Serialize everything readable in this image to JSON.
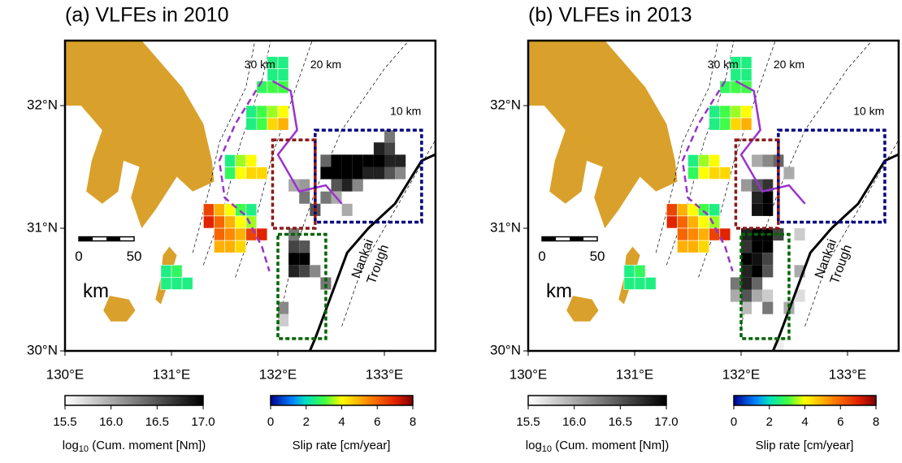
{
  "panels": [
    {
      "title": "(a) VLFEs in 2010",
      "xticks": [
        {
          "value": 130,
          "label": "130°E"
        },
        {
          "value": 131,
          "label": "131°E"
        },
        {
          "value": 132,
          "label": "132°E"
        },
        {
          "value": 133,
          "label": "133°E"
        }
      ],
      "yticks": [
        {
          "value": 30,
          "label": "30°N"
        },
        {
          "value": 31,
          "label": "31°N"
        },
        {
          "value": 32,
          "label": "32°N"
        }
      ],
      "depth_labels": [
        "30 km",
        "20 km",
        "10 km"
      ],
      "trough_label": [
        "Nankai",
        "Trough"
      ],
      "scale": {
        "zero": "0",
        "fifty": "50",
        "unit": "km"
      },
      "moment_bar": {
        "lim": [
          15.5,
          17
        ],
        "ticks": [
          15.5,
          {
            "value": 16,
            "label": "16.0"
          },
          16.5,
          {
            "value": 17,
            "label": "17.0"
          }
        ],
        "label_log": "log",
        "label_sub": "10",
        "label_rest": " (Cum. moment [Nm])"
      },
      "slip_bar": {
        "lim": [
          0,
          8
        ],
        "ticks": [
          0,
          2,
          4,
          6,
          8
        ],
        "label": "Slip rate [cm/year]"
      },
      "slip_cells": [
        [
          131.9,
          32.3,
          2.5
        ],
        [
          132.0,
          32.3,
          2.5
        ],
        [
          131.9,
          32.2,
          2.5
        ],
        [
          132.0,
          32.2,
          2.5
        ],
        [
          131.8,
          32.1,
          2.8
        ],
        [
          131.9,
          32.1,
          3
        ],
        [
          132.0,
          32.1,
          3
        ],
        [
          131.7,
          31.9,
          2.5
        ],
        [
          131.8,
          31.9,
          3
        ],
        [
          131.9,
          31.9,
          3.5
        ],
        [
          132.0,
          31.9,
          4
        ],
        [
          131.7,
          31.8,
          2.5
        ],
        [
          131.8,
          31.8,
          3
        ],
        [
          131.9,
          31.8,
          4.5
        ],
        [
          132.0,
          31.8,
          5
        ],
        [
          131.5,
          31.5,
          2.5
        ],
        [
          131.6,
          31.5,
          3.5
        ],
        [
          131.7,
          31.5,
          4
        ],
        [
          131.5,
          31.4,
          2.8
        ],
        [
          131.6,
          31.4,
          4
        ],
        [
          131.7,
          31.4,
          4.5
        ],
        [
          131.8,
          31.4,
          4.5
        ],
        [
          131.3,
          31.1,
          6.5
        ],
        [
          131.4,
          31.1,
          5
        ],
        [
          131.5,
          31.1,
          4
        ],
        [
          131.6,
          31.1,
          3
        ],
        [
          131.7,
          31.1,
          2.5
        ],
        [
          131.3,
          31.0,
          7
        ],
        [
          131.4,
          31.0,
          6
        ],
        [
          131.5,
          31.0,
          5
        ],
        [
          131.6,
          31.0,
          4
        ],
        [
          131.7,
          31.0,
          3.5
        ],
        [
          131.4,
          30.9,
          6
        ],
        [
          131.5,
          30.9,
          5.5
        ],
        [
          131.6,
          30.9,
          5
        ],
        [
          131.7,
          30.9,
          6.5
        ],
        [
          131.8,
          30.9,
          7
        ],
        [
          131.4,
          30.8,
          5
        ],
        [
          131.5,
          30.8,
          5
        ],
        [
          131.6,
          30.8,
          4.5
        ],
        [
          130.9,
          30.6,
          2.5
        ],
        [
          131.0,
          30.6,
          2.8
        ],
        [
          130.9,
          30.5,
          2.5
        ],
        [
          131.0,
          30.5,
          2.5
        ],
        [
          131.1,
          30.5,
          2.5
        ]
      ],
      "moment_cells": [
        [
          132.4,
          31.5,
          16.4
        ],
        [
          132.5,
          31.5,
          17
        ],
        [
          132.6,
          31.5,
          17
        ],
        [
          132.7,
          31.5,
          17
        ],
        [
          132.8,
          31.5,
          17
        ],
        [
          132.9,
          31.5,
          17
        ],
        [
          133.0,
          31.5,
          16.8
        ],
        [
          133.1,
          31.5,
          16.8
        ],
        [
          132.4,
          31.4,
          17
        ],
        [
          132.5,
          31.4,
          17
        ],
        [
          132.6,
          31.4,
          17
        ],
        [
          132.7,
          31.4,
          17
        ],
        [
          132.8,
          31.4,
          16.8
        ],
        [
          132.9,
          31.4,
          16.8
        ],
        [
          133.0,
          31.4,
          16.5
        ],
        [
          133.1,
          31.4,
          16.2
        ],
        [
          132.5,
          31.3,
          16.5
        ],
        [
          132.6,
          31.3,
          16.8
        ],
        [
          132.7,
          31.3,
          16.2
        ],
        [
          133.0,
          31.6,
          16.6
        ],
        [
          132.9,
          31.6,
          16.8
        ],
        [
          133.0,
          31.7,
          16.3
        ],
        [
          132.4,
          31.2,
          16.3
        ],
        [
          132.5,
          31.2,
          16.0
        ],
        [
          132.6,
          31.1,
          16.0
        ],
        [
          132.1,
          30.9,
          16.3
        ],
        [
          132.1,
          30.8,
          16.6
        ],
        [
          132.2,
          30.8,
          16.5
        ],
        [
          132.1,
          30.7,
          17
        ],
        [
          132.2,
          30.7,
          17
        ],
        [
          132.1,
          30.6,
          16.8
        ],
        [
          132.2,
          30.6,
          16.6
        ],
        [
          132.3,
          30.6,
          16.2
        ],
        [
          132.4,
          30.5,
          16.3
        ],
        [
          132.0,
          30.3,
          16.2
        ],
        [
          132.0,
          30.2,
          15.8
        ],
        [
          132.1,
          31.3,
          16.0
        ],
        [
          132.2,
          31.3,
          16.1
        ],
        [
          132.2,
          31.2,
          16.3
        ],
        [
          132.3,
          31.1,
          16.5
        ]
      ]
    },
    {
      "title": "(b) VLFEs in 2013",
      "xticks": [
        {
          "value": 130,
          "label": "130°E"
        },
        {
          "value": 131,
          "label": "131°E"
        },
        {
          "value": 132,
          "label": "132°E"
        },
        {
          "value": 133,
          "label": "133°E"
        }
      ],
      "yticks": [
        {
          "value": 30,
          "label": "30°N"
        },
        {
          "value": 31,
          "label": "31°N"
        },
        {
          "value": 32,
          "label": "32°N"
        }
      ],
      "depth_labels": [
        "30 km",
        "20 km",
        "10 km"
      ],
      "trough_label": [
        "Nankai",
        "Trough"
      ],
      "scale": {
        "zero": "0",
        "fifty": "50",
        "unit": "km"
      },
      "moment_bar": {
        "lim": [
          15.5,
          17
        ],
        "ticks": [
          15.5,
          {
            "value": 16,
            "label": "16.0"
          },
          16.5,
          {
            "value": 17,
            "label": "17.0"
          }
        ],
        "label_log": "log",
        "label_sub": "10",
        "label_rest": " (Cum. moment [Nm])"
      },
      "slip_bar": {
        "lim": [
          0,
          8
        ],
        "ticks": [
          0,
          2,
          4,
          6,
          8
        ],
        "label": "Slip rate [cm/year]"
      },
      "slip_cells": [
        [
          131.9,
          32.3,
          2.5
        ],
        [
          132.0,
          32.3,
          2.5
        ],
        [
          131.9,
          32.2,
          2.5
        ],
        [
          132.0,
          32.2,
          2.5
        ],
        [
          131.8,
          32.1,
          2.8
        ],
        [
          131.9,
          32.1,
          3
        ],
        [
          132.0,
          32.1,
          3
        ],
        [
          131.7,
          31.9,
          2.5
        ],
        [
          131.8,
          31.9,
          3
        ],
        [
          131.9,
          31.9,
          3.5
        ],
        [
          132.0,
          31.9,
          4
        ],
        [
          131.7,
          31.8,
          2.5
        ],
        [
          131.8,
          31.8,
          3
        ],
        [
          131.9,
          31.8,
          4.5
        ],
        [
          132.0,
          31.8,
          5
        ],
        [
          131.5,
          31.5,
          2.5
        ],
        [
          131.6,
          31.5,
          3.5
        ],
        [
          131.7,
          31.5,
          4
        ],
        [
          131.5,
          31.4,
          2.8
        ],
        [
          131.6,
          31.4,
          4
        ],
        [
          131.7,
          31.4,
          4.5
        ],
        [
          131.8,
          31.4,
          4.5
        ],
        [
          131.3,
          31.1,
          6.5
        ],
        [
          131.4,
          31.1,
          5
        ],
        [
          131.5,
          31.1,
          4
        ],
        [
          131.6,
          31.1,
          3
        ],
        [
          131.7,
          31.1,
          2.5
        ],
        [
          131.3,
          31.0,
          7
        ],
        [
          131.4,
          31.0,
          6
        ],
        [
          131.5,
          31.0,
          5
        ],
        [
          131.6,
          31.0,
          4
        ],
        [
          131.7,
          31.0,
          3.5
        ],
        [
          131.4,
          30.9,
          6
        ],
        [
          131.5,
          30.9,
          5.5
        ],
        [
          131.6,
          30.9,
          5
        ],
        [
          131.7,
          30.9,
          6.5
        ],
        [
          131.8,
          30.9,
          7
        ],
        [
          131.4,
          30.8,
          5
        ],
        [
          131.5,
          30.8,
          5
        ],
        [
          131.6,
          30.8,
          4.5
        ],
        [
          130.9,
          30.6,
          2.5
        ],
        [
          131.0,
          30.6,
          2.8
        ],
        [
          130.9,
          30.5,
          2.5
        ],
        [
          131.0,
          30.5,
          2.5
        ],
        [
          131.1,
          30.5,
          2.5
        ]
      ],
      "moment_cells": [
        [
          132.1,
          31.5,
          16.0
        ],
        [
          132.2,
          31.5,
          16.2
        ],
        [
          132.3,
          31.5,
          16.4
        ],
        [
          132.4,
          31.4,
          16.0
        ],
        [
          132.0,
          31.3,
          16.1
        ],
        [
          132.1,
          31.3,
          16.5
        ],
        [
          132.2,
          31.3,
          16.7
        ],
        [
          132.1,
          31.2,
          16.8
        ],
        [
          132.2,
          31.2,
          17
        ],
        [
          132.1,
          31.1,
          16.9
        ],
        [
          132.2,
          31.1,
          17
        ],
        [
          132.0,
          30.9,
          16.8
        ],
        [
          132.1,
          30.9,
          17
        ],
        [
          132.2,
          30.9,
          17
        ],
        [
          132.3,
          30.9,
          16.6
        ],
        [
          132.0,
          30.8,
          16.7
        ],
        [
          132.1,
          30.8,
          17
        ],
        [
          132.2,
          30.8,
          17
        ],
        [
          132.0,
          30.7,
          17
        ],
        [
          132.1,
          30.7,
          16.9
        ],
        [
          132.2,
          30.7,
          16.6
        ],
        [
          132.0,
          30.6,
          16.8
        ],
        [
          132.1,
          30.6,
          17
        ],
        [
          132.2,
          30.6,
          16.5
        ],
        [
          131.9,
          30.5,
          16.3
        ],
        [
          132.0,
          30.5,
          16.8
        ],
        [
          132.1,
          30.5,
          16.4
        ],
        [
          131.9,
          30.4,
          16.0
        ],
        [
          132.0,
          30.4,
          16.5
        ],
        [
          132.1,
          30.4,
          16.0
        ],
        [
          132.2,
          30.4,
          15.8
        ],
        [
          132.0,
          30.3,
          15.9
        ],
        [
          132.2,
          30.3,
          16.3
        ],
        [
          132.4,
          30.3,
          16.0
        ],
        [
          132.5,
          30.4,
          15.7
        ],
        [
          132.5,
          30.6,
          16.0
        ],
        [
          132.5,
          30.9,
          15.8
        ],
        [
          132.3,
          30.0,
          15.6
        ]
      ]
    }
  ]
}
